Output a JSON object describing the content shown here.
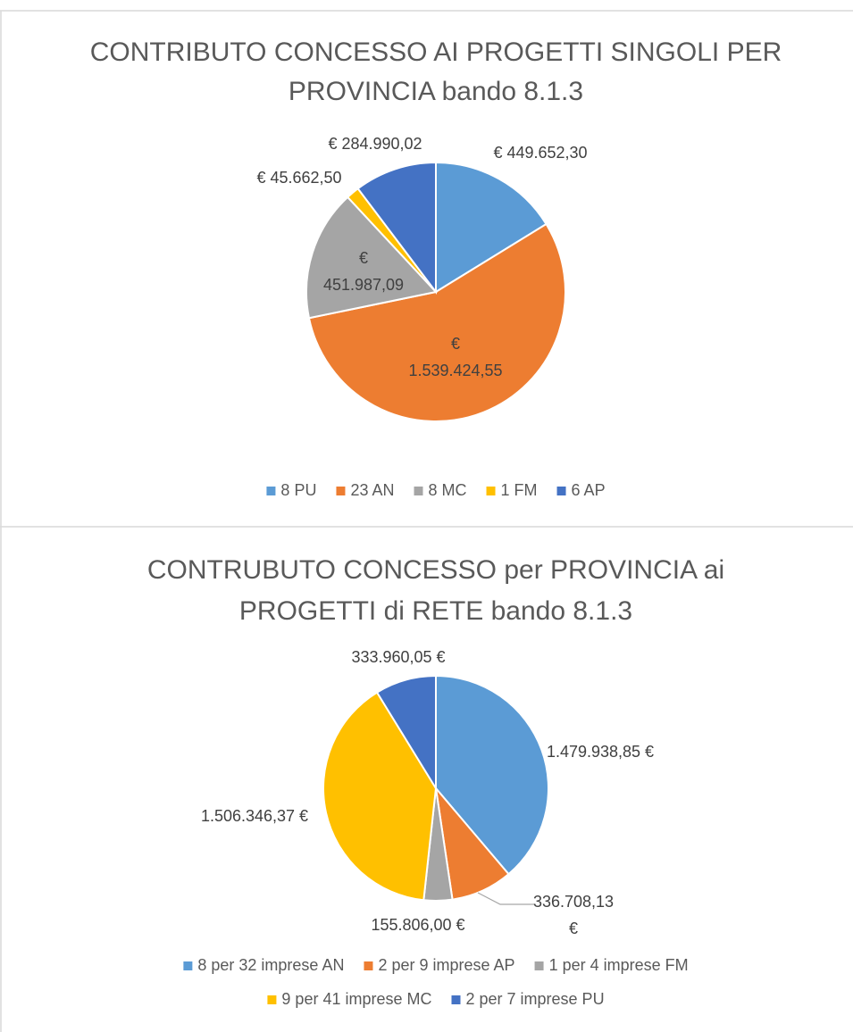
{
  "chart_data": [
    {
      "type": "pie",
      "title": "CONTRIBUTO CONCESSO AI PROGETTI SINGOLI PER PROVINCIA bando 8.1.3",
      "categories": [
        "8 PU",
        "23 AN",
        "8 MC",
        "1 FM",
        "6 AP"
      ],
      "values": [
        449652.3,
        1539424.55,
        451987.09,
        45662.5,
        284990.02
      ],
      "value_labels": [
        "€ 449.652,30",
        "€ 1.539.424,55",
        "€ 451.987,09",
        "€ 45.662,50",
        "€ 284.990,02"
      ],
      "colors": [
        "#5b9bd5",
        "#ed7d31",
        "#a5a5a5",
        "#ffc000",
        "#4472c4"
      ],
      "legend": "bottom"
    },
    {
      "type": "pie",
      "title": "CONTRUBUTO CONCESSO per PROVINCIA ai PROGETTI di RETE bando 8.1.3",
      "categories": [
        "8 per 32 imprese AN",
        "2 per 9 imprese AP",
        "1 per 4 imprese FM",
        "9 per 41 imprese MC",
        "2 per 7 imprese PU"
      ],
      "values": [
        1479938.85,
        336708.13,
        155806.0,
        1506346.37,
        333960.05
      ],
      "value_labels": [
        "1.479.938,85 €",
        "336.708,13 €",
        "155.806,00 €",
        "1.506.346,37 €",
        "333.960,05 €"
      ],
      "colors": [
        "#5b9bd5",
        "#ed7d31",
        "#a5a5a5",
        "#ffc000",
        "#4472c4"
      ],
      "legend": "bottom"
    }
  ]
}
